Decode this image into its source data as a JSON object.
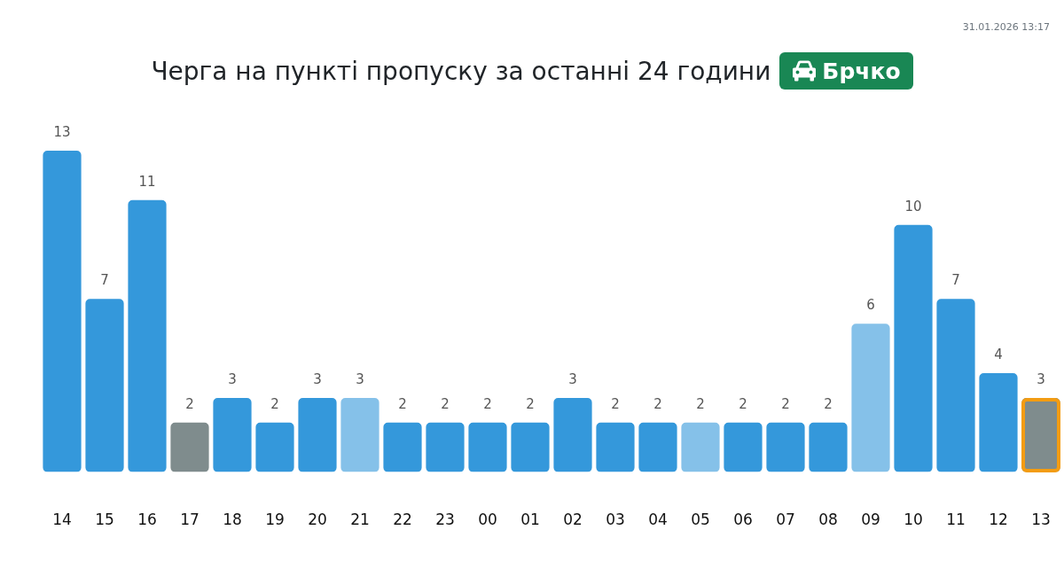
{
  "chart_data": {
    "type": "bar",
    "title": "Черга на пункті пропуску за останні 24 години",
    "subtitle": "Брчко",
    "annotations": [
      "31.01.2026 13:17"
    ],
    "categories": [
      "14",
      "15",
      "16",
      "17",
      "18",
      "19",
      "20",
      "21",
      "22",
      "23",
      "00",
      "01",
      "02",
      "03",
      "04",
      "05",
      "06",
      "07",
      "08",
      "09",
      "10",
      "11",
      "12",
      "13"
    ],
    "values": [
      13,
      7,
      11,
      2,
      3,
      2,
      3,
      3,
      2,
      2,
      2,
      2,
      3,
      2,
      2,
      2,
      2,
      2,
      2,
      6,
      10,
      7,
      4,
      3
    ],
    "colors": [
      "#3498db",
      "#3498db",
      "#3498db",
      "#7f8c8d",
      "#3498db",
      "#3498db",
      "#3498db",
      "#85c1e9",
      "#3498db",
      "#3498db",
      "#3498db",
      "#3498db",
      "#3498db",
      "#3498db",
      "#3498db",
      "#85c1e9",
      "#3498db",
      "#3498db",
      "#3498db",
      "#85c1e9",
      "#3498db",
      "#3498db",
      "#3498db",
      "#7f8c8d"
    ],
    "data_labels": true
  }
}
